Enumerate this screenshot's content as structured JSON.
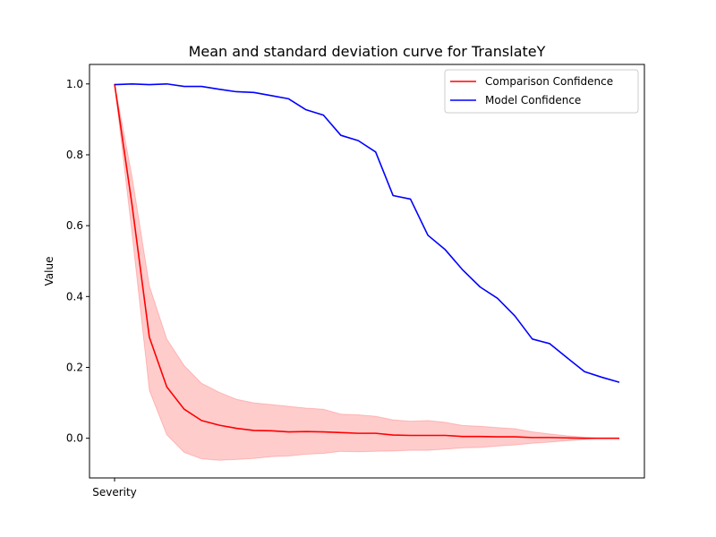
{
  "chart_data": {
    "type": "line",
    "title": "Mean and standard deviation curve for TranslateY",
    "xlabel": "",
    "ylabel": "Value",
    "x_tick_labels": [
      "Severity"
    ],
    "ylim": [
      -0.112,
      1.055
    ],
    "y_ticks": [
      "0.0",
      "0.2",
      "0.4",
      "0.6",
      "0.8",
      "1.0"
    ],
    "grid": false,
    "legend_position": "top-right",
    "series": [
      {
        "name": "Comparison Confidence",
        "color": "#ff0000",
        "band_color": "#ff0000",
        "values": [
          1.0,
          0.66,
          0.285,
          0.145,
          0.082,
          0.05,
          0.037,
          0.028,
          0.022,
          0.021,
          0.018,
          0.019,
          0.018,
          0.016,
          0.014,
          0.014,
          0.009,
          0.008,
          0.008,
          0.008,
          0.005,
          0.005,
          0.004,
          0.004,
          0.002,
          0.002,
          0.001,
          0.0,
          0.0,
          0.0
        ],
        "upper": [
          1.0,
          0.74,
          0.43,
          0.28,
          0.205,
          0.155,
          0.13,
          0.11,
          0.1,
          0.095,
          0.09,
          0.085,
          0.082,
          0.068,
          0.066,
          0.062,
          0.052,
          0.048,
          0.05,
          0.045,
          0.036,
          0.034,
          0.03,
          0.027,
          0.018,
          0.012,
          0.007,
          0.003,
          0.0,
          0.0
        ],
        "lower": [
          1.0,
          0.58,
          0.135,
          0.01,
          -0.04,
          -0.058,
          -0.062,
          -0.06,
          -0.057,
          -0.052,
          -0.05,
          -0.045,
          -0.043,
          -0.037,
          -0.038,
          -0.037,
          -0.036,
          -0.034,
          -0.034,
          -0.031,
          -0.027,
          -0.026,
          -0.022,
          -0.019,
          -0.014,
          -0.011,
          -0.007,
          -0.003,
          0.0,
          0.0
        ]
      },
      {
        "name": "Model Confidence",
        "color": "#0000ff",
        "values": [
          0.998,
          1.0,
          0.998,
          1.0,
          0.993,
          0.993,
          0.985,
          0.978,
          0.976,
          0.967,
          0.958,
          0.927,
          0.912,
          0.855,
          0.84,
          0.808,
          0.685,
          0.675,
          0.573,
          0.532,
          0.475,
          0.427,
          0.395,
          0.345,
          0.28,
          0.267,
          0.227,
          0.188,
          0.172,
          0.158
        ]
      }
    ]
  }
}
